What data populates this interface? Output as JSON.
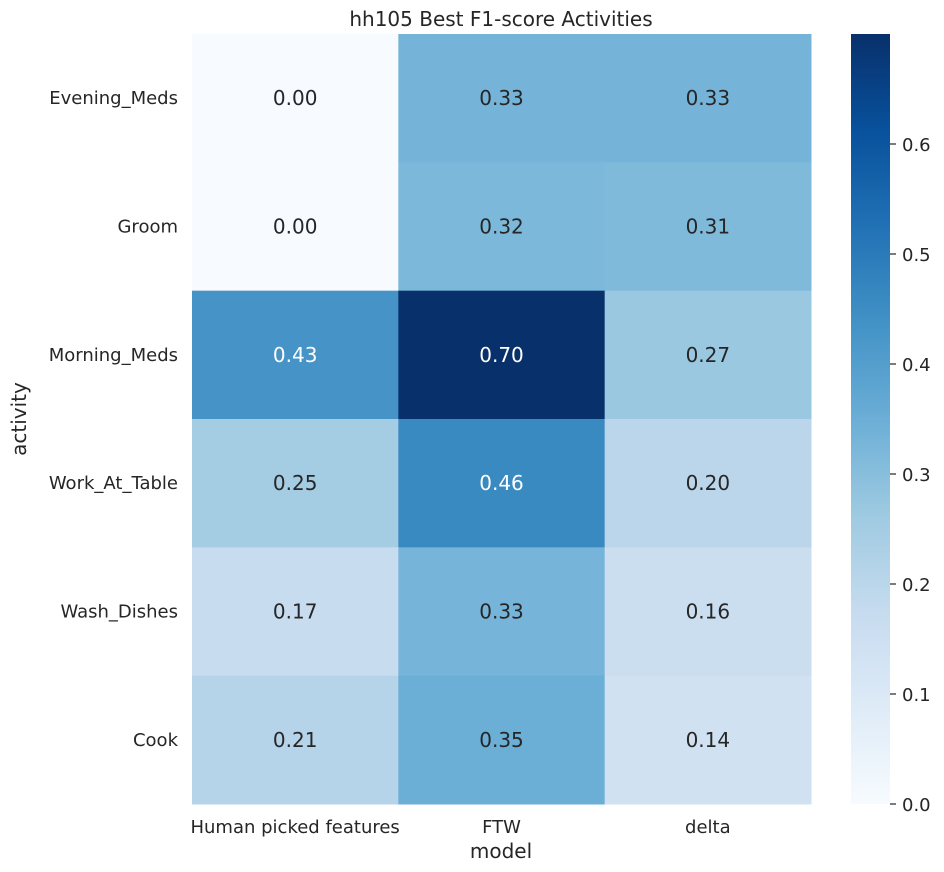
{
  "chart_data": {
    "type": "heatmap",
    "title": "hh105 Best F1-score Activities",
    "xlabel": "model",
    "ylabel": "activity",
    "columns": [
      "Human picked features",
      "FTW",
      "delta"
    ],
    "rows": [
      "Evening_Meds",
      "Groom",
      "Morning_Meds",
      "Work_At_Table",
      "Wash_Dishes",
      "Cook"
    ],
    "values": [
      [
        0.0,
        0.333,
        0.333
      ],
      [
        0.0,
        0.32,
        0.314
      ],
      [
        0.43,
        0.7,
        0.27
      ],
      [
        0.25,
        0.46,
        0.2
      ],
      [
        0.17,
        0.33,
        0.16
      ],
      [
        0.21,
        0.35,
        0.14
      ]
    ],
    "labels": [
      [
        "0.00",
        "0.33",
        "0.33"
      ],
      [
        "0.00",
        "0.32",
        "0.31"
      ],
      [
        "0.43",
        "0.70",
        "0.27"
      ],
      [
        "0.25",
        "0.46",
        "0.20"
      ],
      [
        "0.17",
        "0.33",
        "0.16"
      ],
      [
        "0.21",
        "0.35",
        "0.14"
      ]
    ],
    "colormap": "Blues",
    "colorbar": {
      "vmin": 0.0,
      "vmax": 0.7,
      "ticks": [
        "0.0",
        "0.1",
        "0.2",
        "0.3",
        "0.4",
        "0.5",
        "0.6"
      ]
    }
  }
}
